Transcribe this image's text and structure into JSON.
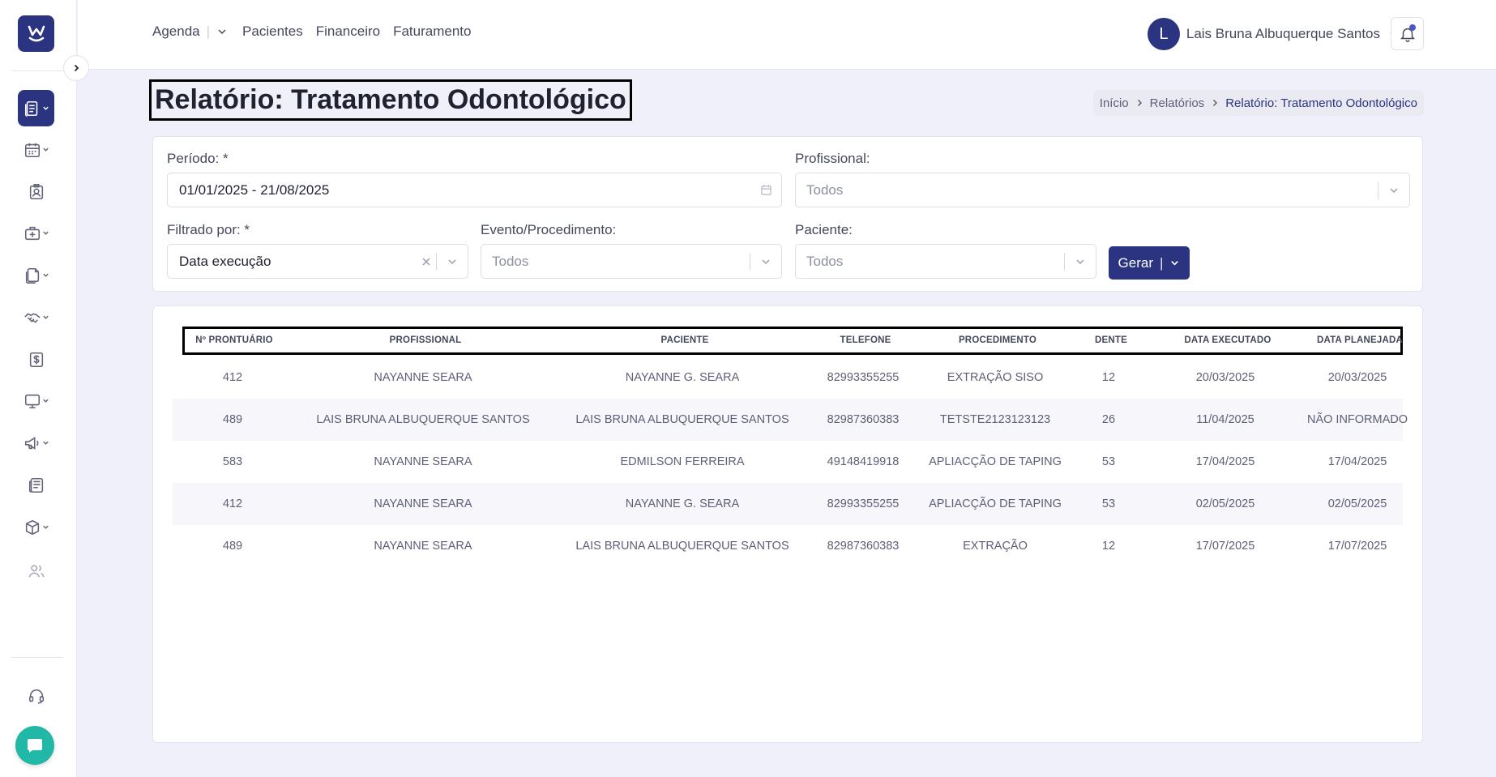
{
  "sidebar": {
    "logo_icon": "w-smile-logo-icon",
    "collapse_icon": "chevron-right-icon",
    "items": [
      {
        "icon": "report-icon",
        "active": true,
        "has_submenu": true
      },
      {
        "icon": "calendar-icon",
        "active": false,
        "has_submenu": true
      },
      {
        "icon": "patient-card-icon",
        "active": false,
        "has_submenu": false
      },
      {
        "icon": "medical-case-icon",
        "active": false,
        "has_submenu": true
      },
      {
        "icon": "documents-icon",
        "active": false,
        "has_submenu": true
      },
      {
        "icon": "handshake-icon",
        "active": false,
        "has_submenu": true
      },
      {
        "icon": "dollar-icon",
        "active": false,
        "has_submenu": false
      },
      {
        "icon": "monitor-icon",
        "active": false,
        "has_submenu": true
      },
      {
        "icon": "megaphone-icon",
        "active": false,
        "has_submenu": true
      },
      {
        "icon": "newspaper-icon",
        "active": false,
        "has_submenu": false
      },
      {
        "icon": "box-icon",
        "active": false,
        "has_submenu": true
      },
      {
        "icon": "users-icon",
        "active": false,
        "has_submenu": false
      }
    ],
    "support_icon": "headset-icon",
    "chat_icon": "chat-bubble-icon"
  },
  "topnav": {
    "items": [
      "Agenda",
      "Pacientes",
      "Financeiro",
      "Faturamento"
    ],
    "agenda_separator": "|"
  },
  "user": {
    "initial": "L",
    "name": "Lais Bruna Albuquerque Santos"
  },
  "page": {
    "title": "Relatório: Tratamento Odontológico",
    "breadcrumb": [
      "Início",
      "Relatórios",
      "Relatório: Tratamento Odontológico"
    ]
  },
  "filters": {
    "periodo_label": "Período: *",
    "periodo_value": "01/01/2025 - 21/08/2025",
    "profissional_label": "Profissional:",
    "profissional_placeholder": "Todos",
    "filtrado_label": "Filtrado por: *",
    "filtrado_value": "Data execução",
    "evento_label": "Evento/Procedimento:",
    "evento_placeholder": "Todos",
    "paciente_label": "Paciente:",
    "paciente_placeholder": "Todos",
    "gerar_label": "Gerar",
    "gerar_separator": "|"
  },
  "table": {
    "columns": [
      "Nº PRONTUÁRIO",
      "PROFISSIONAL",
      "PACIENTE",
      "TELEFONE",
      "PROCEDIMENTO",
      "DENTE",
      "DATA EXECUTADO",
      "DATA PLANEJADA"
    ],
    "rows": [
      [
        "412",
        "NAYANNE SEARA",
        "NAYANNE G. SEARA",
        "82993355255",
        "EXTRAÇÃO SISO",
        "12",
        "20/03/2025",
        "20/03/2025"
      ],
      [
        "489",
        "LAIS BRUNA ALBUQUERQUE SANTOS",
        "LAIS BRUNA ALBUQUERQUE SANTOS",
        "82987360383",
        "TETSTE2123123123",
        "26",
        "11/04/2025",
        "NÃO INFORMADO"
      ],
      [
        "583",
        "NAYANNE SEARA",
        "EDMILSON FERREIRA",
        "49148419918",
        "APLIACÇÃO DE TAPING",
        "53",
        "17/04/2025",
        "17/04/2025"
      ],
      [
        "412",
        "NAYANNE SEARA",
        "NAYANNE G. SEARA",
        "82993355255",
        "APLIACÇÃO DE TAPING",
        "53",
        "02/05/2025",
        "02/05/2025"
      ],
      [
        "489",
        "NAYANNE SEARA",
        "LAIS BRUNA ALBUQUERQUE SANTOS",
        "82987360383",
        "EXTRAÇÃO",
        "12",
        "17/07/2025",
        "17/07/2025"
      ]
    ]
  },
  "colors": {
    "primary": "#2b3480",
    "chat": "#22b8a8",
    "background": "#eff0f9"
  }
}
